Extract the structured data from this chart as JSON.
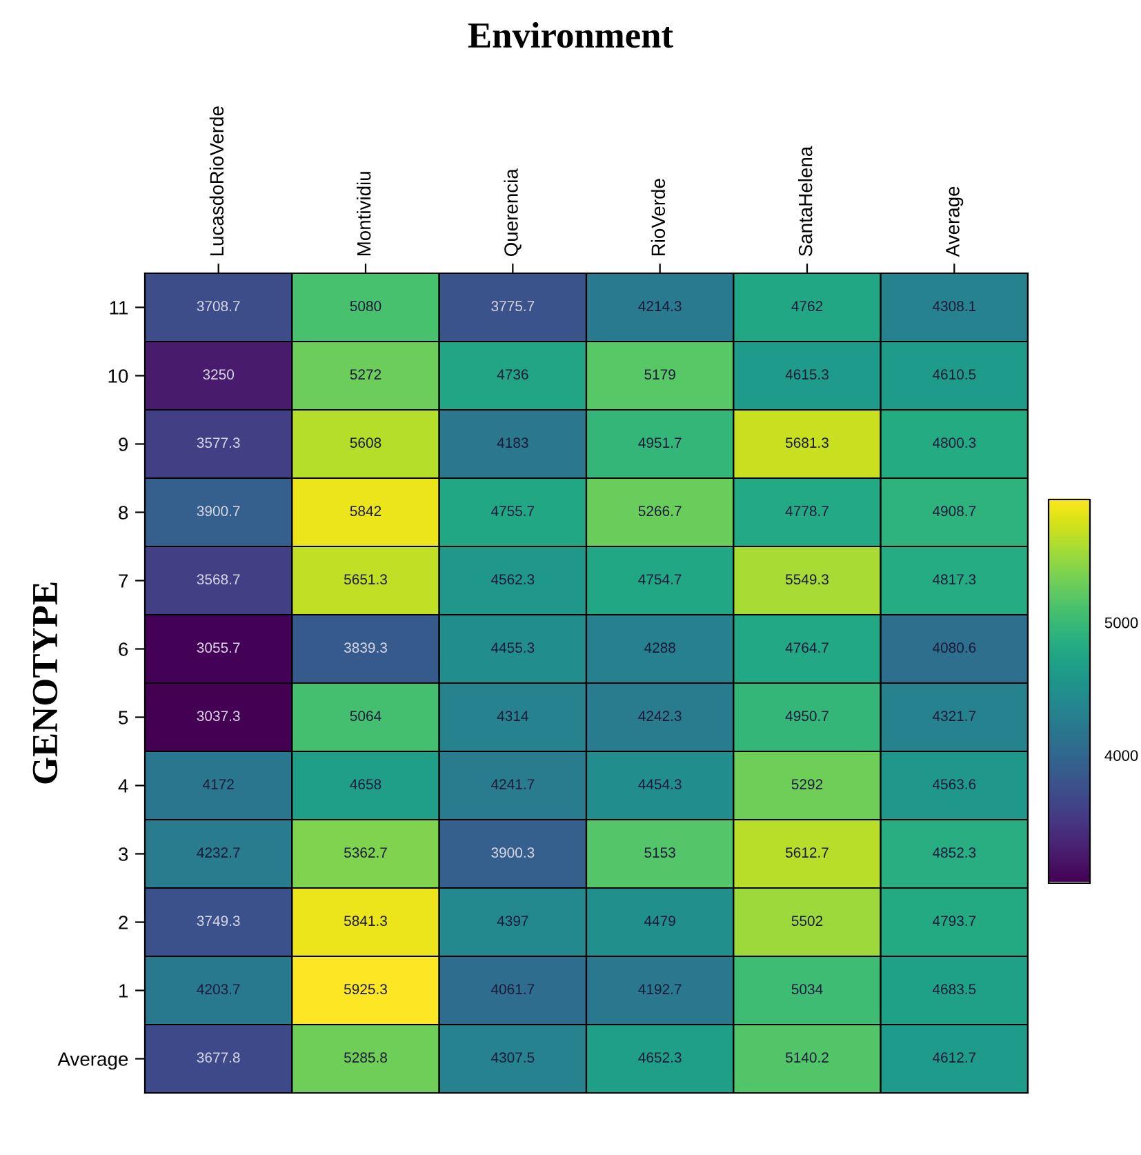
{
  "chart_data": {
    "type": "heatmap",
    "title": "Environment",
    "ylabel": "GENOTYPE",
    "categories": [
      "LucasdoRioVerde",
      "Montividiu",
      "Querencia",
      "RioVerde",
      "SantaHelena",
      "Average"
    ],
    "y_categories": [
      "11",
      "10",
      "9",
      "8",
      "7",
      "6",
      "5",
      "4",
      "3",
      "2",
      "1",
      "Average"
    ],
    "cells": [
      [
        3708.7,
        5080,
        3775.7,
        4214.3,
        4762,
        4308.1
      ],
      [
        3250,
        5272,
        4736,
        5179,
        4615.3,
        4610.5
      ],
      [
        3577.3,
        5608,
        4183,
        4951.7,
        5681.3,
        4800.3
      ],
      [
        3900.7,
        5842,
        4755.7,
        5266.7,
        4778.7,
        4908.7
      ],
      [
        3568.7,
        5651.3,
        4562.3,
        4754.7,
        5549.3,
        4817.3
      ],
      [
        3055.7,
        3839.3,
        4455.3,
        4288,
        4764.7,
        4080.6
      ],
      [
        3037.3,
        5064,
        4314,
        4242.3,
        4950.7,
        4321.7
      ],
      [
        4172,
        4658,
        4241.7,
        4454.3,
        5292,
        4563.6
      ],
      [
        4232.7,
        5362.7,
        3900.3,
        5153,
        5612.7,
        4852.3
      ],
      [
        3749.3,
        5841.3,
        4397,
        4479,
        5502,
        4793.7
      ],
      [
        4203.7,
        5925.3,
        4061.7,
        4192.7,
        5034,
        4683.5
      ],
      [
        3677.8,
        5285.8,
        4307.5,
        4652.3,
        5140.2,
        4612.7
      ]
    ],
    "clim": [
      3037.3,
      5925.3
    ],
    "cticks": [
      4000,
      5000
    ],
    "data_labels": true
  }
}
